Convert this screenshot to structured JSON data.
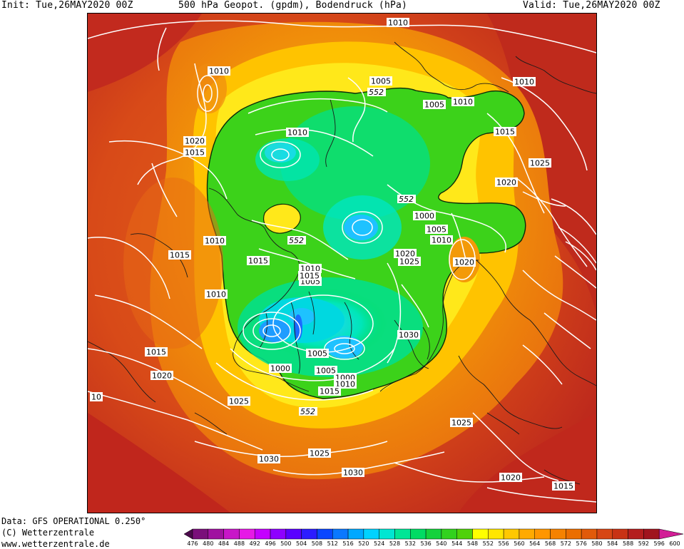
{
  "header": {
    "init": "Init: Tue,26MAY2020 00Z",
    "title": "500 hPa Geopot. (gpdm), Bodendruck (hPa)",
    "valid": "Valid: Tue,26MAY2020 00Z"
  },
  "footer": {
    "data_source": "Data: GFS OPERATIONAL 0.250°",
    "copyright": "(C) Wetterzentrale",
    "url": "www.wetterzentrale.de"
  },
  "map": {
    "pressure_labels": [
      "1010",
      "1010",
      "1005",
      "1005",
      "1010",
      "1010",
      "1015",
      "1020",
      "1015",
      "1025",
      "1020",
      "1010",
      "1000",
      "1005",
      "1010",
      "1020",
      "1025",
      "1010",
      "1015",
      "1015",
      "1010",
      "1005",
      "1020",
      "1015",
      "1010",
      "1030",
      "1015",
      "1005",
      "1005",
      "1000",
      "1000",
      "1010",
      "1015",
      "1020",
      "1025",
      "1025",
      "1030",
      "1025",
      "1030",
      "1020",
      "1015",
      "10"
    ],
    "geopot_labels": [
      "552",
      "552",
      "552",
      "552"
    ]
  },
  "colorbar": {
    "ticks": [
      "476",
      "480",
      "484",
      "488",
      "492",
      "496",
      "500",
      "504",
      "508",
      "512",
      "516",
      "520",
      "524",
      "528",
      "532",
      "536",
      "540",
      "544",
      "548",
      "552",
      "556",
      "560",
      "564",
      "568",
      "572",
      "576",
      "580",
      "584",
      "588",
      "592",
      "596",
      "600"
    ],
    "colors": [
      "#4b0a4b",
      "#7a0f7a",
      "#a012a0",
      "#c816c8",
      "#e619e6",
      "#c400ff",
      "#8e00ff",
      "#5a00ff",
      "#2c1cff",
      "#0a46ff",
      "#0a78ff",
      "#00a8ff",
      "#00d2ff",
      "#00e6d2",
      "#00e696",
      "#00dc64",
      "#14d23c",
      "#32d21e",
      "#50d20a",
      "#ffff00",
      "#ffe600",
      "#ffc800",
      "#ffaa00",
      "#ff9600",
      "#f58200",
      "#eb6e00",
      "#e15a0a",
      "#d74614",
      "#c83214",
      "#b41e1e",
      "#a0141e",
      "#d21e96"
    ]
  }
}
